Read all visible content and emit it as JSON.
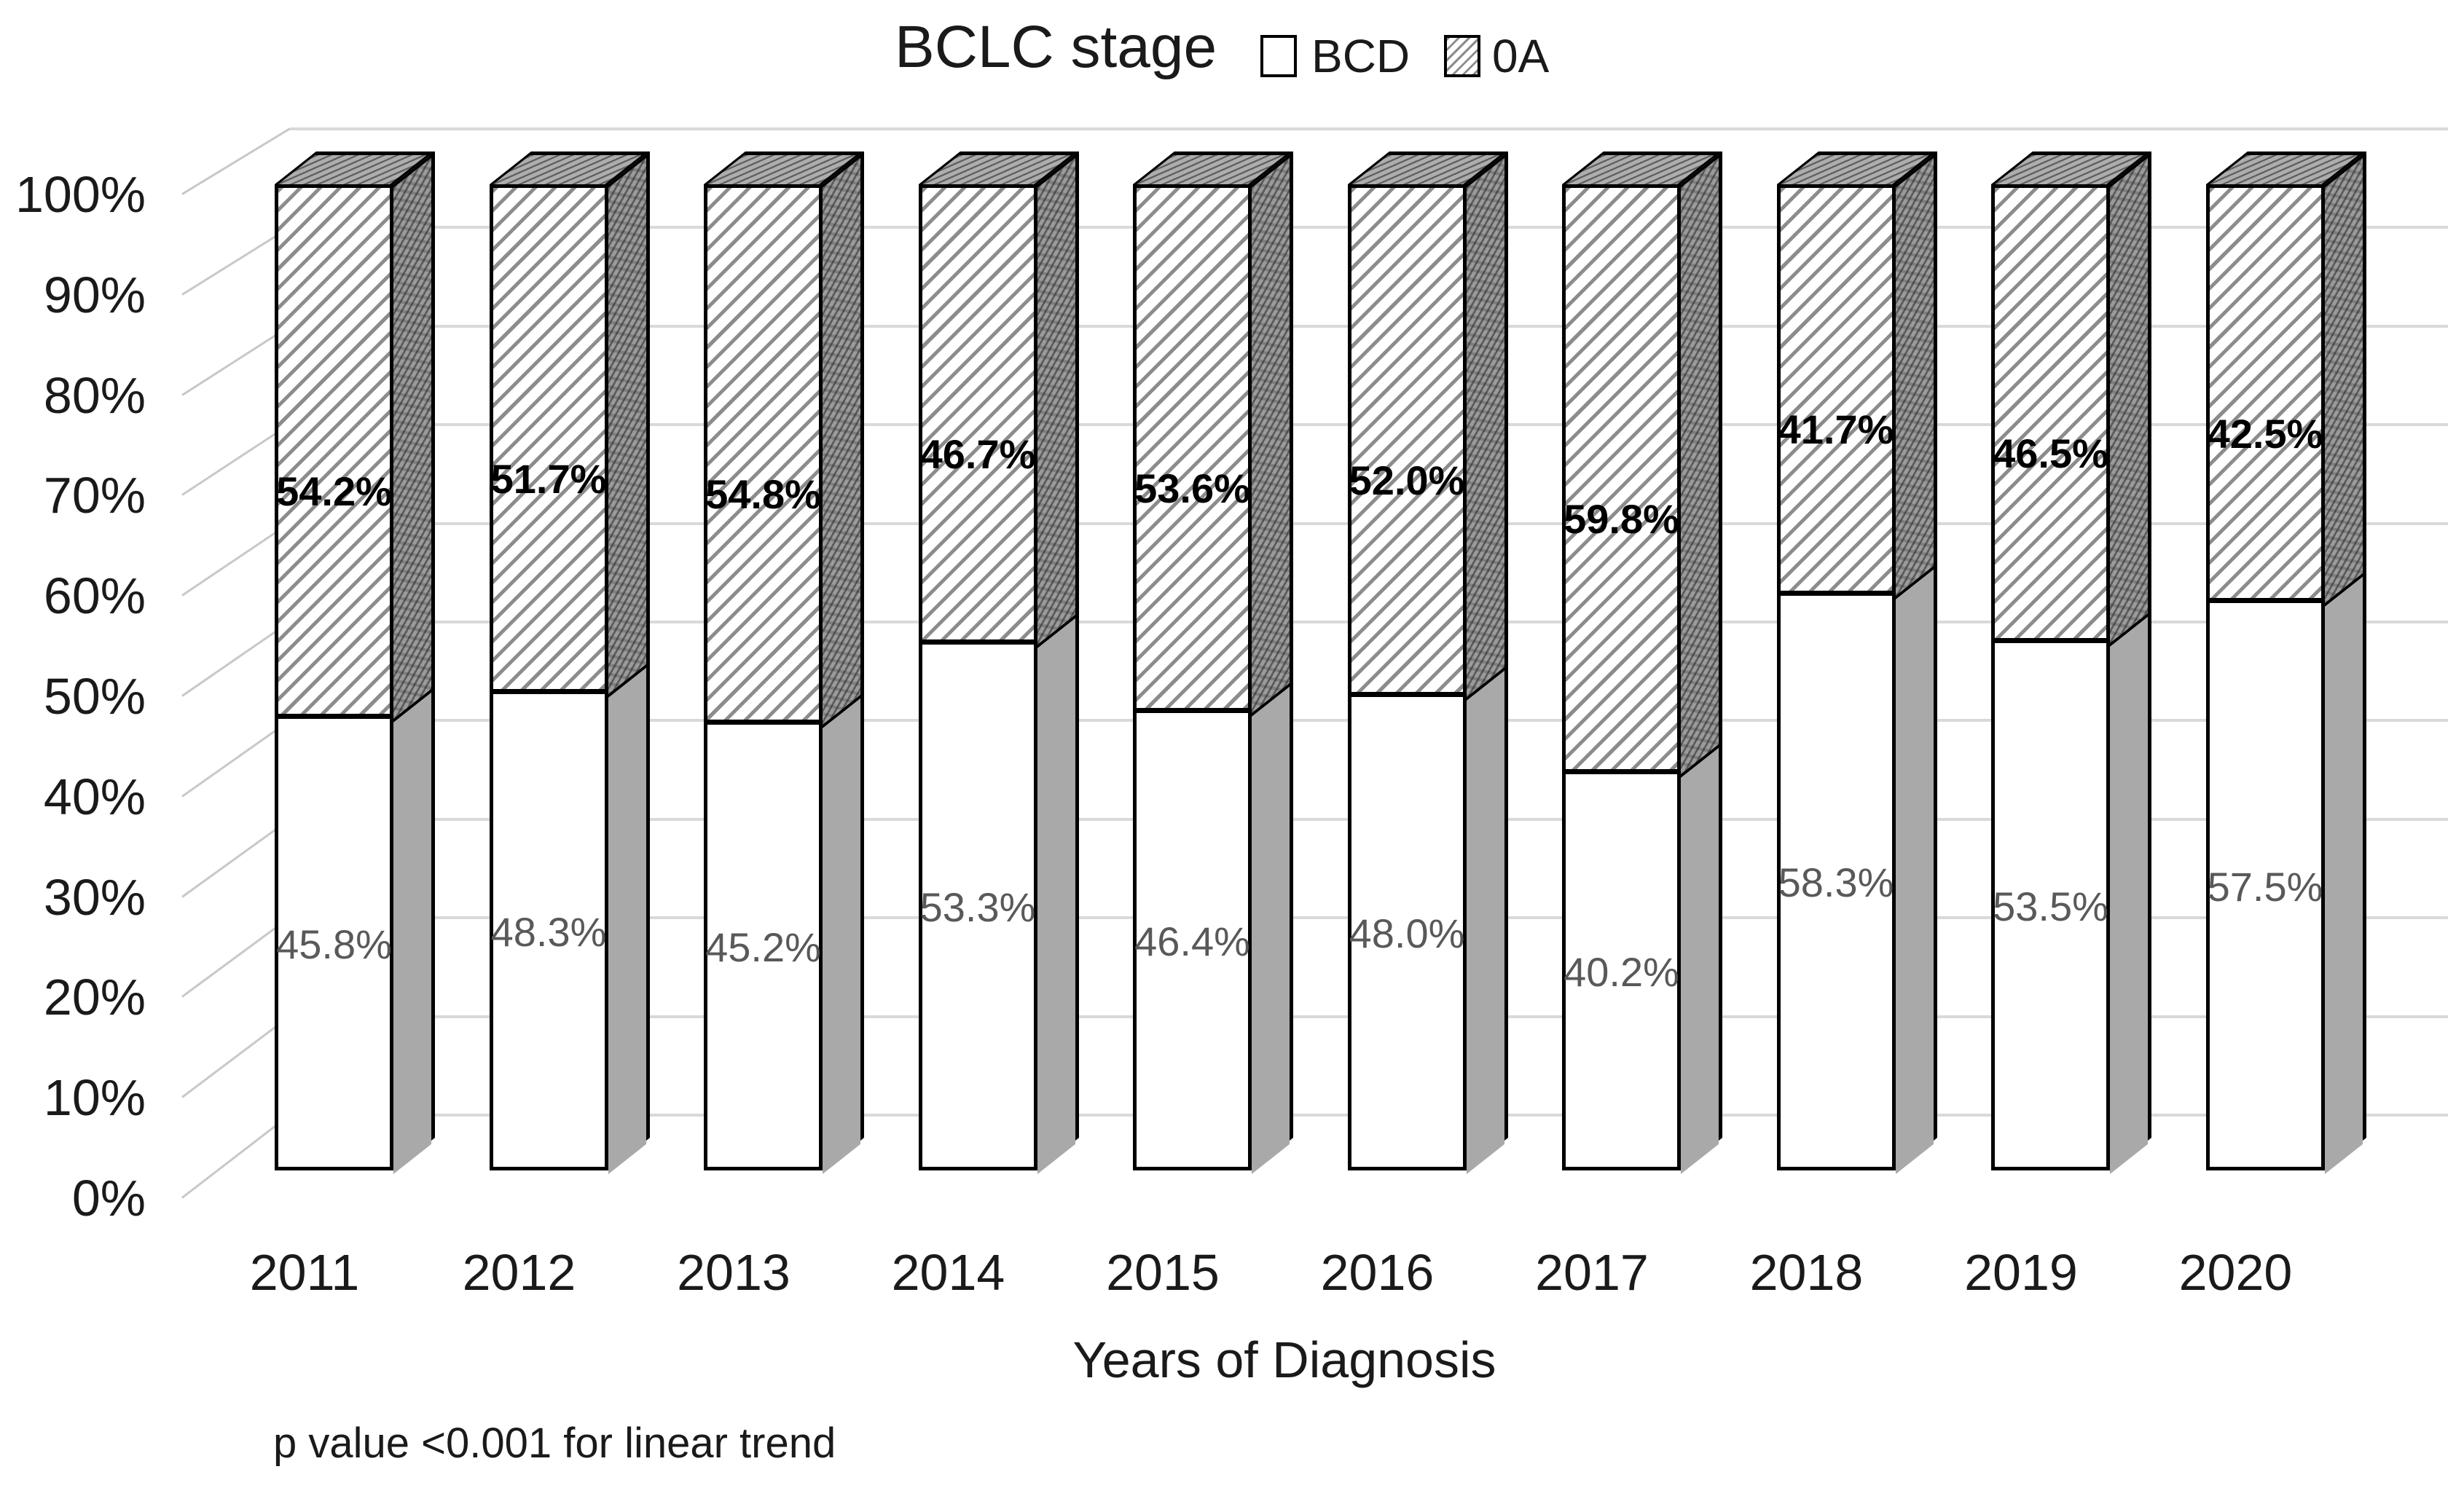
{
  "title": "BCLC stage",
  "xlabel": "Years of Diagnosis",
  "footnote": "p value <0.001 for linear trend",
  "legend": {
    "position": "top",
    "items": [
      {
        "label": "BCD",
        "swatch": "plain-white"
      },
      {
        "label": "0A",
        "swatch": "diagonal-hatch"
      }
    ]
  },
  "chart_data": {
    "type": "bar",
    "subtype": "100%-stacked-column-3d",
    "title": "BCLC stage",
    "xlabel": "Years of Diagnosis",
    "ylabel": "",
    "categories": [
      "2011",
      "2012",
      "2013",
      "2014",
      "2015",
      "2016",
      "2017",
      "2018",
      "2019",
      "2020"
    ],
    "series": [
      {
        "name": "BCD",
        "fill": "plain-white",
        "values": [
          45.8,
          48.3,
          45.2,
          53.3,
          46.4,
          48.0,
          40.2,
          58.3,
          53.5,
          57.5
        ],
        "labels": [
          "45.8%",
          "48.3%",
          "45.2%",
          "53.3%",
          "46.4%",
          "48.0%",
          "40.2%",
          "58.3%",
          "53.5%",
          "57.5%"
        ]
      },
      {
        "name": "0A",
        "fill": "diagonal-hatch",
        "values": [
          54.2,
          51.7,
          54.8,
          46.7,
          53.6,
          52.0,
          59.8,
          41.7,
          46.5,
          42.5
        ],
        "labels": [
          "54.2%",
          "51.7%",
          "54.8%",
          "46.7%",
          "53.6%",
          "52.0%",
          "59.8%",
          "41.7%",
          "46.5%",
          "42.5%"
        ]
      }
    ],
    "y_ticks": [
      "0%",
      "10%",
      "20%",
      "30%",
      "40%",
      "50%",
      "60%",
      "70%",
      "80%",
      "90%",
      "100%"
    ],
    "ylim": [
      0,
      100
    ],
    "grid": true,
    "legend_position": "top",
    "annotation": "p value <0.001 for linear trend"
  },
  "colors": {
    "bar_fill_bcd": "#ffffff",
    "hatch_line": "#8c8c8c",
    "side_face_plain": "#a9a9a9",
    "side_face_hatched": "#9b9b9b",
    "top_face": "#adadad",
    "gridline": "#d9d9d9",
    "tick_connector": "#c8c8c8",
    "label_bcd": "#595959",
    "label_0a": "#000000",
    "outline": "#000000",
    "text": "#1a1a1a"
  }
}
